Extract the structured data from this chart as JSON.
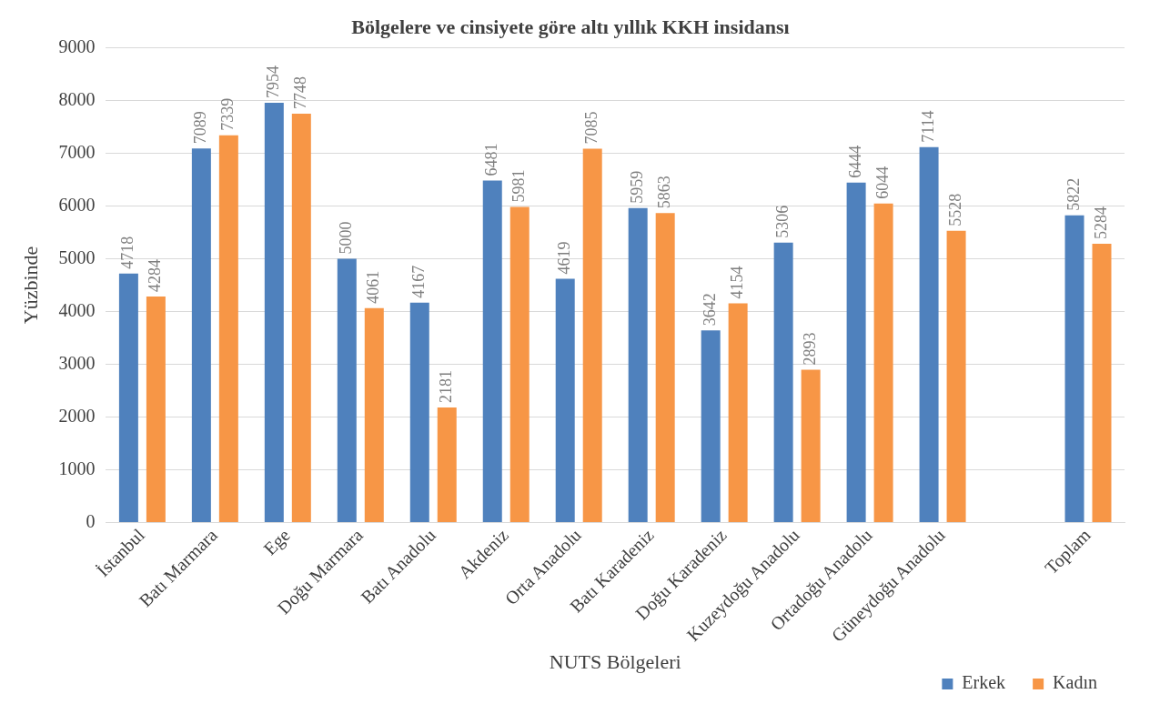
{
  "chart_data": {
    "type": "bar",
    "title": "Bölgelere ve cinsiyete göre altı yıllık KKH insidansı",
    "xlabel": "NUTS Bölgeleri",
    "ylabel": "Yüzbinde",
    "categories": [
      "İstanbul",
      "Batı Marmara",
      "Ege",
      "Doğu Marmara",
      "Batı Anadolu",
      "Akdeniz",
      "Orta Anadolu",
      "Batı Karadeniz",
      "Doğu Karadeniz",
      "Kuzeydoğu Anadolu",
      "Ortadoğu Anadolu",
      "Güneydoğu Anadolu",
      null,
      "Toplam"
    ],
    "series": [
      {
        "name": "Erkek",
        "color": "#4f81bd",
        "values": [
          4718,
          7089,
          7954,
          5000,
          4167,
          6481,
          4619,
          5959,
          3642,
          5306,
          6444,
          7114,
          null,
          5822
        ]
      },
      {
        "name": "Kadın",
        "color": "#f79646",
        "values": [
          4284,
          7339,
          7748,
          4061,
          2181,
          5981,
          7085,
          5863,
          4154,
          2893,
          6044,
          5528,
          null,
          5284
        ]
      }
    ],
    "ylim": [
      0,
      9000
    ],
    "yticks": [
      0,
      1000,
      2000,
      3000,
      4000,
      5000,
      6000,
      7000,
      8000,
      9000
    ],
    "grid": "y",
    "legend": "bottom right",
    "data_labels": true
  }
}
